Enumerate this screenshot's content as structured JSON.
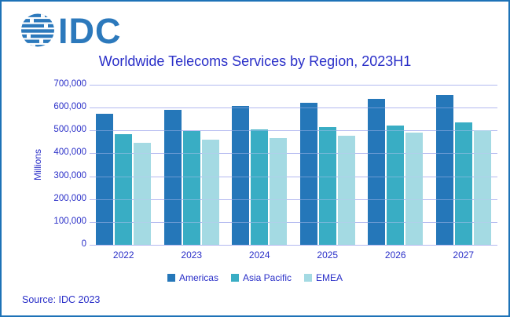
{
  "logo": {
    "text": "IDC"
  },
  "chart_data": {
    "type": "bar",
    "title": "Worldwide Telecoms Services by Region, 2023H1",
    "ylabel": "Millions",
    "xlabel": "",
    "source": "Source: IDC 2023",
    "categories": [
      "2022",
      "2023",
      "2024",
      "2025",
      "2026",
      "2027"
    ],
    "series": [
      {
        "name": "Americas",
        "color": "#2577B9",
        "values": [
          572000,
          591000,
          606000,
          621000,
          639000,
          656000
        ]
      },
      {
        "name": "Asia Pacific",
        "color": "#39ADC4",
        "values": [
          484000,
          497000,
          504000,
          515000,
          523000,
          536000
        ]
      },
      {
        "name": "EMEA",
        "color": "#A4DAE3",
        "values": [
          445000,
          459000,
          468000,
          478000,
          490000,
          501000
        ]
      }
    ],
    "ylim": [
      0,
      700000
    ],
    "ytick_step": 100000,
    "grid": true,
    "legend_position": "bottom"
  },
  "colors": {
    "frame_border": "#1D72B7",
    "logo": "#2C79BC",
    "text": "#2A2FC8",
    "gridline": "#AAB1ED"
  }
}
